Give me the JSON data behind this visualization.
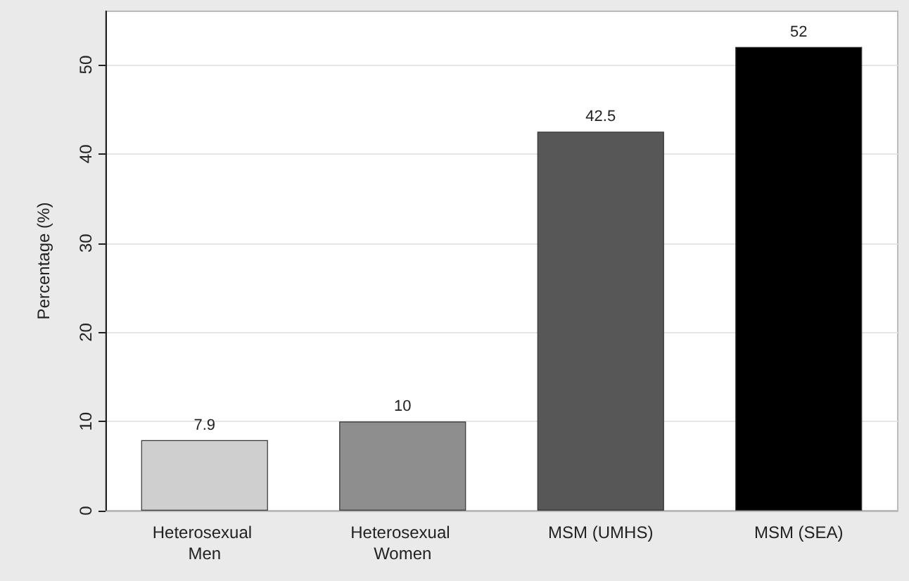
{
  "chart_data": {
    "type": "bar",
    "ylabel": "Percentage (%)",
    "categories": [
      "Heterosexual Men",
      "Heterosexual Women",
      "MSM (UMHS)",
      "MSM (SEA)"
    ],
    "values": [
      7.9,
      10,
      42.5,
      52
    ],
    "colors": [
      "#cfcfcf",
      "#8e8e8e",
      "#575757",
      "#000000"
    ],
    "ylim": [
      0,
      56
    ],
    "yticks": [
      0,
      10,
      20,
      30,
      40,
      50
    ],
    "grid": "y",
    "data_labels": true
  }
}
